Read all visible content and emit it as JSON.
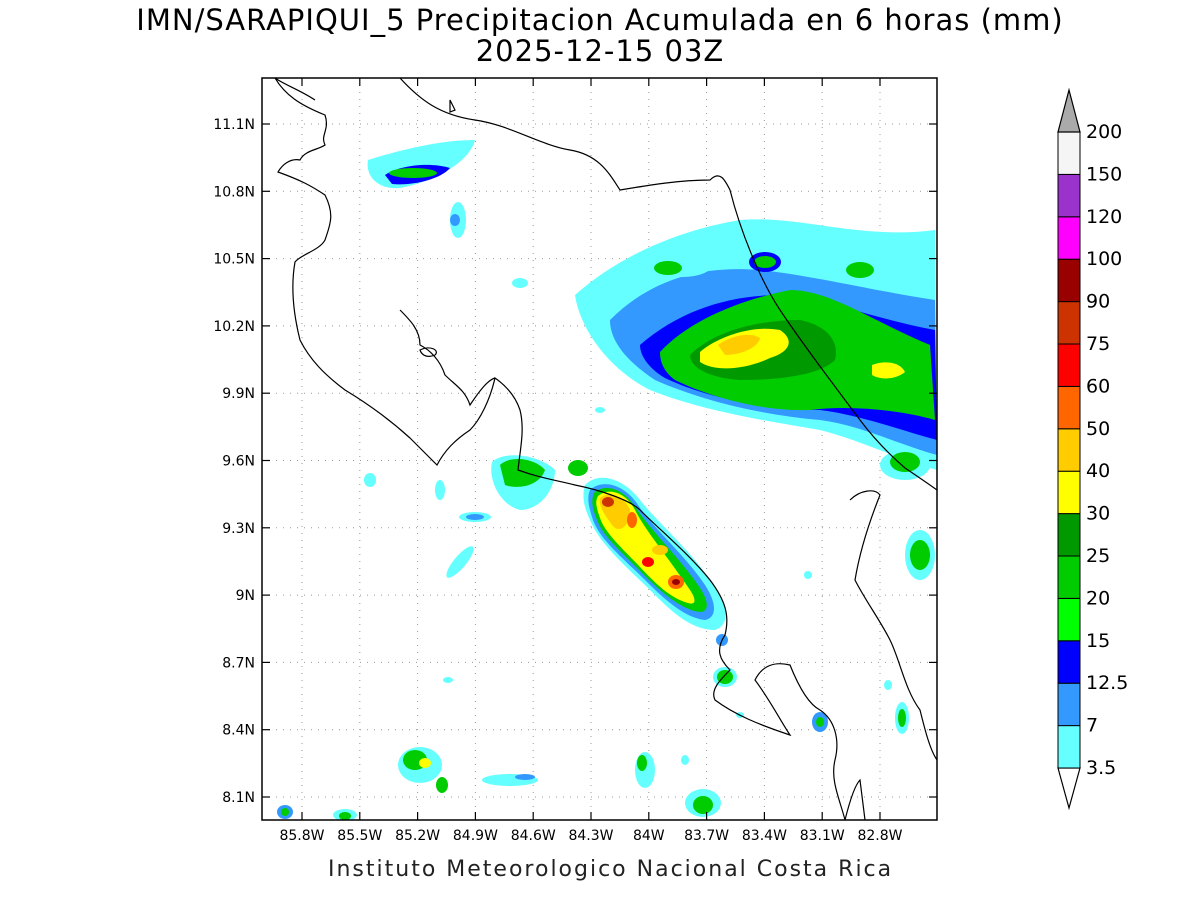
{
  "title": {
    "line1": "IMN/SARAPIQUI_5 Precipitacion Acumulada en 6 horas (mm)",
    "line2": "2025-12-15 03Z"
  },
  "footer": "Instituto Meteorologico Nacional Costa Rica",
  "map": {
    "lat_labels": [
      "11.1N",
      "10.8N",
      "10.5N",
      "10.2N",
      "9.9N",
      "9.6N",
      "9.3N",
      "9N",
      "8.7N",
      "8.4N",
      "8.1N"
    ],
    "lon_labels": [
      "85.8W",
      "85.5W",
      "85.2W",
      "84.9W",
      "84.6W",
      "84.3W",
      "84W",
      "83.7W",
      "83.4W",
      "83.1W",
      "82.8W"
    ],
    "grid": "dotted"
  },
  "colorbar": {
    "labels": [
      "3.5",
      "7",
      "12.5",
      "15",
      "20",
      "25",
      "30",
      "40",
      "50",
      "60",
      "75",
      "90",
      "100",
      "120",
      "150",
      "200"
    ],
    "colors": [
      "#66ffff",
      "#3399ff",
      "#0000ff",
      "#00ff00",
      "#00cc00",
      "#009900",
      "#ffff00",
      "#ffcc00",
      "#ff6600",
      "#ff0000",
      "#cc3300",
      "#990000",
      "#ff00ff",
      "#9933cc",
      "#f5f5f5",
      "#aaaaaa"
    ],
    "extend": "both"
  },
  "colors": {
    "c1": "#66ffff",
    "c2": "#3399ff",
    "c3": "#0000ff",
    "c4": "#00ff00",
    "c5": "#00cc00",
    "c6": "#009900",
    "c7": "#ffff00",
    "c8": "#ffcc00",
    "c9": "#ff6600",
    "c10": "#ff0000",
    "c11": "#cc3300",
    "c12": "#990000"
  }
}
